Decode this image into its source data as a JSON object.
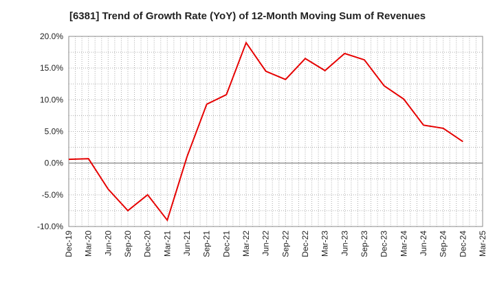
{
  "chart_data": {
    "type": "line",
    "title": "[6381]  Trend of Growth Rate (YoY) of 12-Month Moving Sum of Revenues",
    "xlabel": "",
    "ylabel": "",
    "x_tick_labels": [
      "Dec-19",
      "Mar-20",
      "Jun-20",
      "Sep-20",
      "Dec-20",
      "Mar-21",
      "Jun-21",
      "Sep-21",
      "Dec-21",
      "Mar-22",
      "Jun-22",
      "Sep-22",
      "Dec-22",
      "Mar-23",
      "Jun-23",
      "Sep-23",
      "Dec-23",
      "Mar-24",
      "Jun-24",
      "Sep-24",
      "Dec-24",
      "Mar-25"
    ],
    "y_tick_labels": [
      "20.0%",
      "15.0%",
      "10.0%",
      "5.0%",
      "0.0%",
      "-5.0%",
      "-10.0%"
    ],
    "y_ticks": [
      20,
      15,
      10,
      5,
      0,
      -5,
      -10
    ],
    "ylim": [
      -10,
      20
    ],
    "grid": true,
    "series": [
      {
        "color": "#e60000",
        "x": [
          "Dec-19",
          "Mar-20",
          "Jun-20",
          "Sep-20",
          "Dec-20",
          "Mar-21",
          "Jun-21",
          "Sep-21",
          "Dec-21",
          "Mar-22",
          "Jun-22",
          "Sep-22",
          "Dec-22",
          "Mar-23",
          "Jun-23",
          "Sep-23",
          "Dec-23",
          "Mar-24",
          "Jun-24",
          "Sep-24",
          "Dec-24"
        ],
        "values": [
          0.6,
          0.7,
          -4.1,
          -7.5,
          -5.0,
          -9.0,
          1.0,
          9.3,
          10.8,
          19.0,
          14.5,
          13.2,
          16.5,
          14.6,
          17.3,
          16.3,
          12.2,
          10.1,
          6.0,
          5.5,
          3.4
        ]
      }
    ]
  }
}
